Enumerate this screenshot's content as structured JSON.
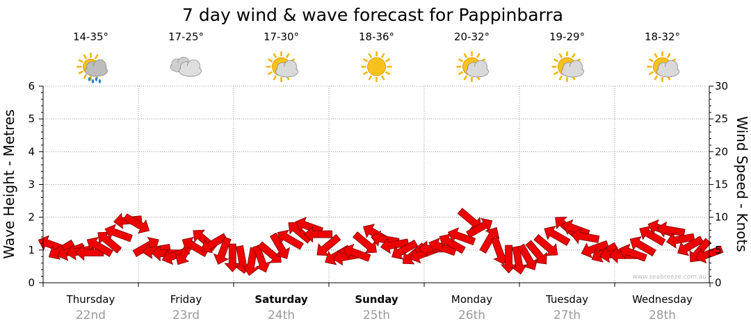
{
  "chart_data": {
    "type": "line",
    "title": "7 day wind & wave forecast for Pappinbarra",
    "ylabel_left": "Wave Height - Metres",
    "ylabel_right": "Wind Speed - Knots",
    "ylim_left": [
      0,
      6
    ],
    "ylim_right": [
      0,
      30
    ],
    "yticks_left": [
      "0",
      "1",
      "2",
      "3",
      "4",
      "5",
      "6"
    ],
    "yticks_right": [
      "0",
      "5",
      "10",
      "15",
      "20",
      "25",
      "30"
    ],
    "grid": "dotted",
    "credit": "www.seabreeze.com.au",
    "days": [
      {
        "day": "Thursday",
        "date": "22nd",
        "temp": "14-35°",
        "icon": "storm-rain-icon",
        "bold": false
      },
      {
        "day": "Friday",
        "date": "23rd",
        "temp": "17-25°",
        "icon": "cloudy-icon",
        "bold": false
      },
      {
        "day": "Saturday",
        "date": "24th",
        "temp": "17-30°",
        "icon": "partly-cloudy-icon",
        "bold": true
      },
      {
        "day": "Sunday",
        "date": "25th",
        "temp": "18-36°",
        "icon": "sunny-icon",
        "bold": true
      },
      {
        "day": "Monday",
        "date": "26th",
        "temp": "20-32°",
        "icon": "partly-cloudy-icon",
        "bold": false
      },
      {
        "day": "Tuesday",
        "date": "27th",
        "temp": "19-29°",
        "icon": "partly-cloudy-icon",
        "bold": false
      },
      {
        "day": "Wednesday",
        "date": "28th",
        "temp": "18-32°",
        "icon": "partly-cloudy-icon",
        "bold": false
      }
    ],
    "series": [
      {
        "name": "Wind",
        "color": "#ee0000",
        "x_days": [
          0.0,
          0.1,
          0.2,
          0.3,
          0.4,
          0.5,
          0.6,
          0.7,
          0.8,
          0.9,
          1.0,
          1.1,
          1.2,
          1.3,
          1.4,
          1.5,
          1.6,
          1.7,
          1.8,
          1.9,
          2.0,
          2.1,
          2.2,
          2.3,
          2.4,
          2.5,
          2.6,
          2.7,
          2.8,
          2.9,
          3.0,
          3.1,
          3.2,
          3.3,
          3.4,
          3.5,
          3.6,
          3.7,
          3.8,
          3.9,
          4.0,
          4.1,
          4.2,
          4.3,
          4.4,
          4.5,
          4.6,
          4.7,
          4.8,
          4.9,
          5.0,
          5.1,
          5.2,
          5.3,
          5.4,
          5.5,
          5.6,
          5.7,
          5.8,
          5.9,
          6.0,
          6.1,
          6.2,
          6.3,
          6.4,
          6.5,
          6.6,
          6.7,
          6.8,
          6.9
        ],
        "knots": [
          5.8,
          5.0,
          4.8,
          4.8,
          4.6,
          5.5,
          6.3,
          7.5,
          9.5,
          9.0,
          5.5,
          5.0,
          4.5,
          4.2,
          4.6,
          5.5,
          6.6,
          6.0,
          4.8,
          3.8,
          3.5,
          3.2,
          3.6,
          4.5,
          5.5,
          6.6,
          7.8,
          8.6,
          7.4,
          5.6,
          4.2,
          4.0,
          4.5,
          6.0,
          7.5,
          6.6,
          5.8,
          5.0,
          4.3,
          4.4,
          5.2,
          5.4,
          6.0,
          7.0,
          9.6,
          8.4,
          6.6,
          4.8,
          3.6,
          3.4,
          3.8,
          4.5,
          5.6,
          7.2,
          8.6,
          8.2,
          7.0,
          5.2,
          4.6,
          4.4,
          4.2,
          4.5,
          5.6,
          7.2,
          8.2,
          8.0,
          6.6,
          5.6,
          4.8,
          4.4
        ],
        "dir_deg": [
          200,
          150,
          160,
          170,
          180,
          210,
          220,
          200,
          175,
          30,
          330,
          170,
          180,
          160,
          120,
          210,
          220,
          150,
          110,
          90,
          80,
          100,
          70,
          40,
          60,
          210,
          220,
          200,
          180,
          140,
          150,
          170,
          200,
          40,
          210,
          190,
          170,
          150,
          140,
          160,
          180,
          200,
          210,
          200,
          40,
          330,
          300,
          70,
          90,
          80,
          60,
          50,
          40,
          210,
          220,
          200,
          190,
          160,
          150,
          170,
          180,
          200,
          210,
          210,
          200,
          190,
          170,
          150,
          130,
          160
        ]
      }
    ]
  }
}
